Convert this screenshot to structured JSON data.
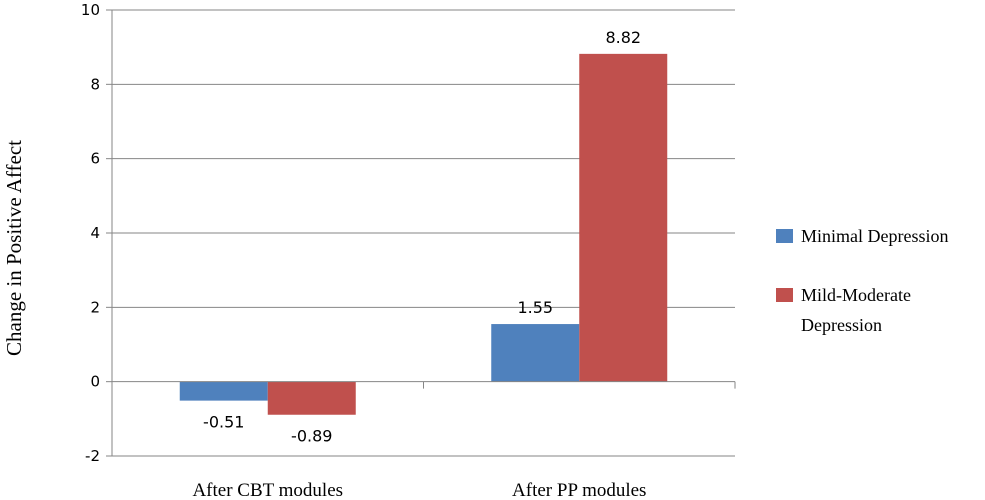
{
  "chart_data": {
    "type": "bar",
    "categories": [
      "After CBT modules",
      "After PP modules"
    ],
    "series": [
      {
        "name": "Minimal Depression",
        "values": [
          -0.51,
          1.55
        ],
        "color": "#4F81BD"
      },
      {
        "name": "Mild-Moderate Depression",
        "values": [
          -0.89,
          8.82
        ],
        "color": "#C0504D"
      }
    ],
    "data_labels": [
      [
        "-0.51",
        "1.55"
      ],
      [
        "-0.89",
        "8.82"
      ]
    ],
    "legend_lines": [
      [
        "Minimal Depression"
      ],
      [
        "Mild-Moderate",
        "Depression"
      ]
    ],
    "yticks": [
      "-2",
      "0",
      "2",
      "4",
      "6",
      "8",
      "10"
    ],
    "ylabel": "Change in Positive Affect",
    "xlabel": "",
    "ylim": [
      -2,
      10
    ],
    "grid": true,
    "legend_position": "right"
  }
}
